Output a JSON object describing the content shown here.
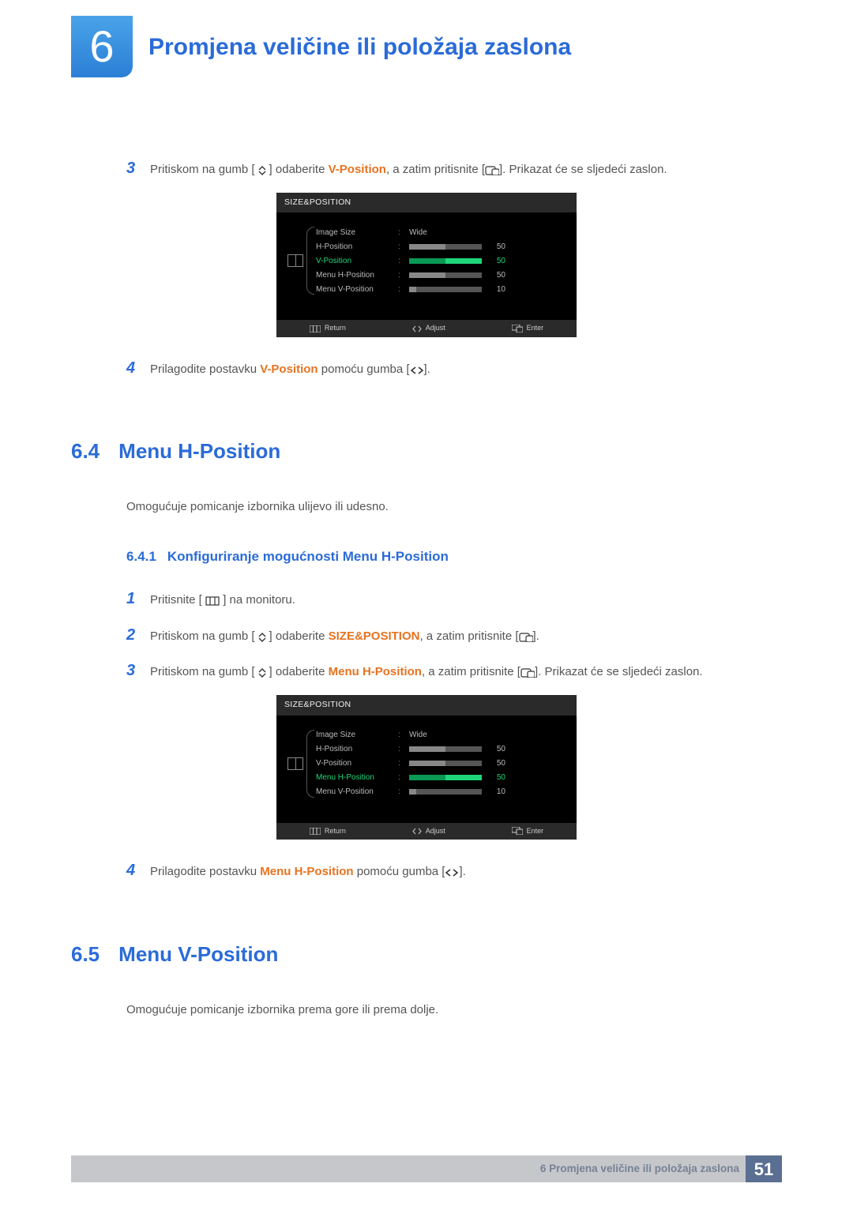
{
  "chapter": {
    "number": "6",
    "title": "Promjena veličine ili položaja zaslona"
  },
  "top_steps": {
    "s3": {
      "num": "3",
      "pre": "Pritiskom na gumb [",
      "mid1": "] odaberite ",
      "highlight": "V-Position",
      "mid2": ", a zatim pritisnite [",
      "post": "]. Prikazat će se sljedeći zaslon."
    },
    "s4": {
      "num": "4",
      "pre": "Prilagodite postavku ",
      "highlight": "V-Position",
      "post": " pomoću gumba [",
      "tail": "]."
    }
  },
  "osd1": {
    "title": "SIZE&POSITION",
    "active_index": 2,
    "rows": [
      {
        "label": "Image Size",
        "type": "text",
        "value": "Wide"
      },
      {
        "label": "H-Position",
        "type": "slider",
        "value": 50,
        "fill": 50
      },
      {
        "label": "V-Position",
        "type": "slider",
        "value": 50,
        "fill": 50
      },
      {
        "label": "Menu H-Position",
        "type": "slider",
        "value": 50,
        "fill": 50
      },
      {
        "label": "Menu V-Position",
        "type": "slider",
        "value": 10,
        "fill": 10
      }
    ],
    "footer": {
      "return": "Return",
      "adjust": "Adjust",
      "enter": "Enter"
    }
  },
  "section64": {
    "num": "6.4",
    "title": "Menu H-Position",
    "desc": "Omogućuje pomicanje izbornika ulijevo ili udesno.",
    "sub_num": "6.4.1",
    "sub_title": "Konfiguriranje mogućnosti Menu H-Position",
    "steps": {
      "s1": {
        "num": "1",
        "pre": "Pritisnite [ ",
        "post": " ] na monitoru."
      },
      "s2": {
        "num": "2",
        "pre": "Pritiskom na gumb [",
        "mid1": "] odaberite ",
        "highlight": "SIZE&POSITION",
        "mid2": ", a zatim pritisnite [",
        "post": "]."
      },
      "s3": {
        "num": "3",
        "pre": "Pritiskom na gumb [",
        "mid1": "] odaberite ",
        "highlight": "Menu H-Position",
        "mid2": ", a zatim pritisnite [",
        "post": "]. Prikazat će se sljedeći zaslon."
      },
      "s4": {
        "num": "4",
        "pre": "Prilagodite postavku ",
        "highlight": "Menu H-Position",
        "post": " pomoću gumba [",
        "tail": "]."
      }
    }
  },
  "osd2": {
    "title": "SIZE&POSITION",
    "active_index": 3,
    "rows": [
      {
        "label": "Image Size",
        "type": "text",
        "value": "Wide"
      },
      {
        "label": "H-Position",
        "type": "slider",
        "value": 50,
        "fill": 50
      },
      {
        "label": "V-Position",
        "type": "slider",
        "value": 50,
        "fill": 50
      },
      {
        "label": "Menu H-Position",
        "type": "slider",
        "value": 50,
        "fill": 50
      },
      {
        "label": "Menu V-Position",
        "type": "slider",
        "value": 10,
        "fill": 10
      }
    ],
    "footer": {
      "return": "Return",
      "adjust": "Adjust",
      "enter": "Enter"
    }
  },
  "section65": {
    "num": "6.5",
    "title": "Menu V-Position",
    "desc": "Omogućuje pomicanje izbornika prema gore ili prema dolje."
  },
  "footer": {
    "text": "6 Promjena veličine ili položaja zaslona",
    "page": "51"
  },
  "colors": {
    "accent_blue": "#2a6bd8",
    "accent_orange": "#e67321",
    "osd_active": "#1fd67a",
    "body_text": "#555555"
  }
}
